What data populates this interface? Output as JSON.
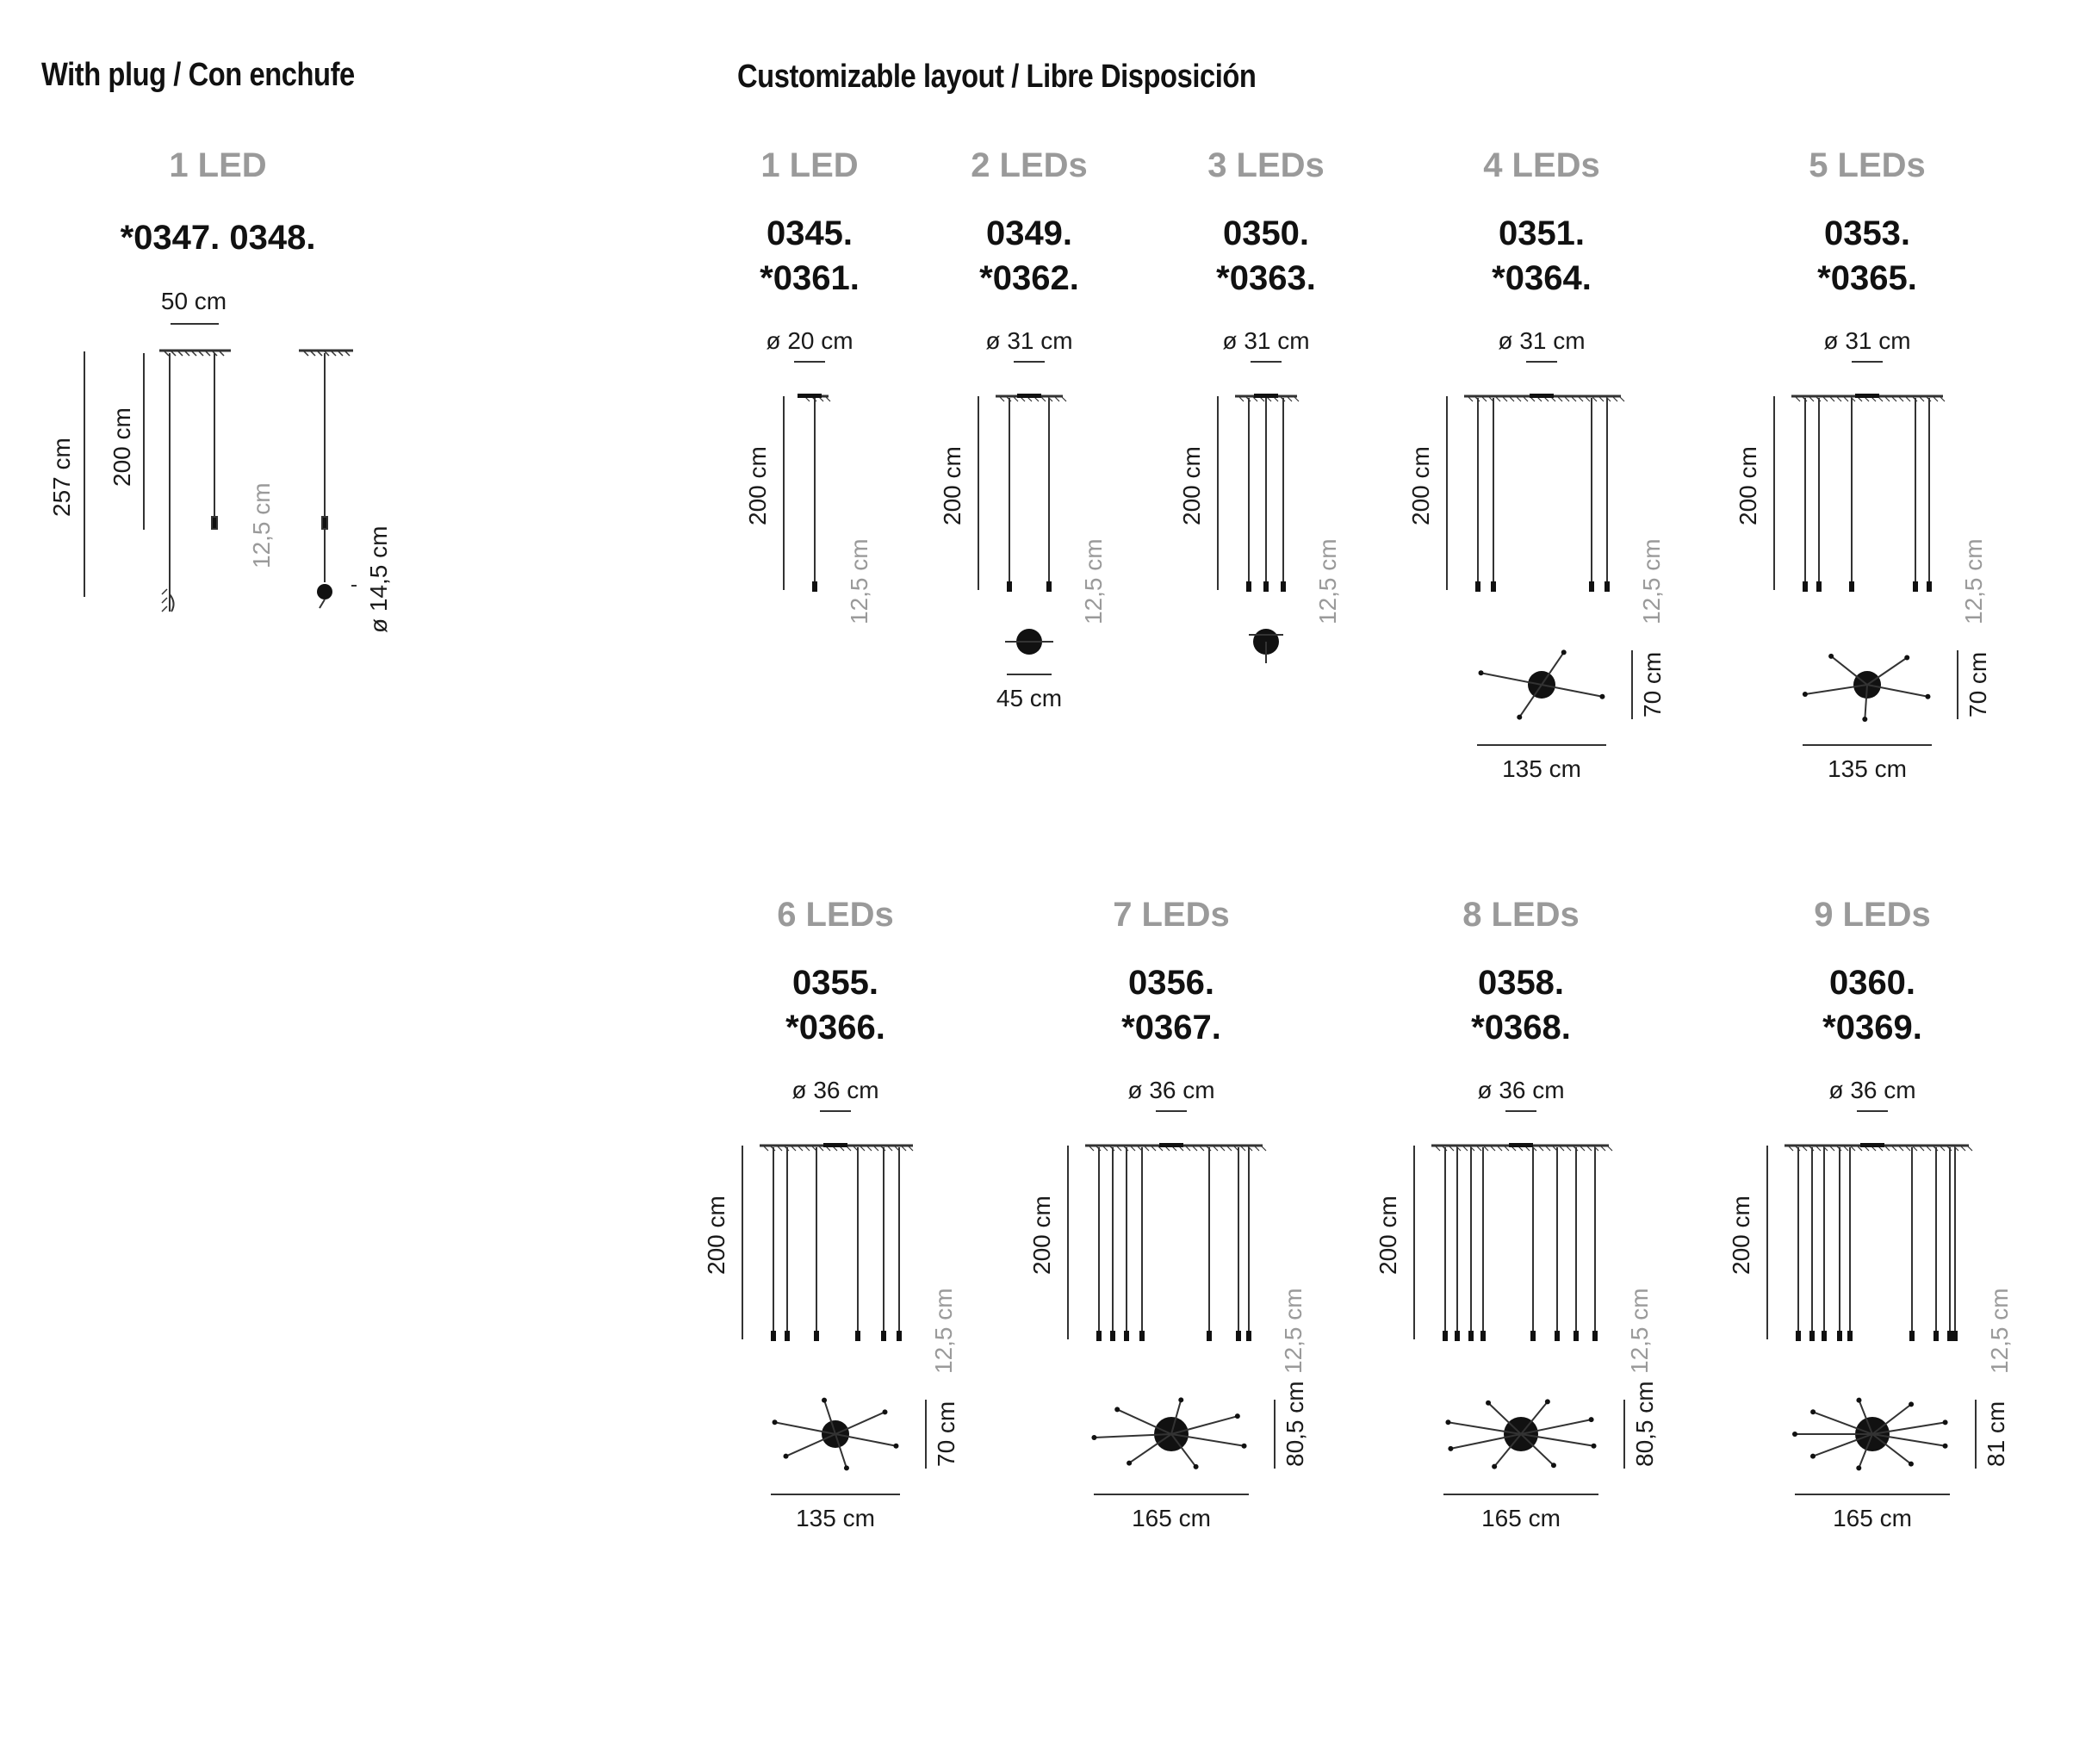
{
  "titles": {
    "plug": "With plug / Con enchufe",
    "custom": "Customizable layout / Libre Disposición"
  },
  "plug_block": {
    "count": "1 LED",
    "codes": "*0347.  0348.",
    "width": "50 cm",
    "total_height": "257 cm",
    "height": "200 cm",
    "drop": "12,5 cm",
    "diameter": "ø 14,5 cm"
  },
  "configs": [
    {
      "count": "1 LED",
      "code1": "0345.",
      "code2": "*0361.",
      "canopy": "ø 20 cm",
      "height": "200 cm",
      "drop": "12,5 cm"
    },
    {
      "count": "2 LEDs",
      "code1": "0349.",
      "code2": "*0362.",
      "canopy": "ø 31 cm",
      "height": "200 cm",
      "drop": "12,5 cm",
      "width": "45 cm"
    },
    {
      "count": "3 LEDs",
      "code1": "0350.",
      "code2": "*0363.",
      "canopy": "ø 31 cm",
      "height": "200 cm",
      "drop": "12,5 cm"
    },
    {
      "count": "4 LEDs",
      "code1": "0351.",
      "code2": "*0364.",
      "canopy": "ø 31 cm",
      "height": "200 cm",
      "drop": "12,5 cm",
      "width": "135 cm",
      "depth": "70 cm"
    },
    {
      "count": "5 LEDs",
      "code1": "0353.",
      "code2": "*0365.",
      "canopy": "ø 31 cm",
      "height": "200 cm",
      "drop": "12,5 cm",
      "width": "135 cm",
      "depth": "70 cm"
    },
    {
      "count": "6 LEDs",
      "code1": "0355.",
      "code2": "*0366.",
      "canopy": "ø 36 cm",
      "height": "200 cm",
      "drop": "12,5 cm",
      "width": "135 cm",
      "depth": "70 cm"
    },
    {
      "count": "7 LEDs",
      "code1": "0356.",
      "code2": "*0367.",
      "canopy": "ø 36 cm",
      "height": "200 cm",
      "drop": "12,5 cm",
      "width": "165 cm",
      "depth": "80,5 cm"
    },
    {
      "count": "8 LEDs",
      "code1": "0358.",
      "code2": "*0368.",
      "canopy": "ø 36 cm",
      "height": "200 cm",
      "drop": "12,5 cm",
      "width": "165 cm",
      "depth": "80,5 cm"
    },
    {
      "count": "9 LEDs",
      "code1": "0360.",
      "code2": "*0369.",
      "canopy": "ø 36 cm",
      "height": "200 cm",
      "drop": "12,5 cm",
      "width": "165 cm",
      "depth": "81 cm"
    }
  ],
  "colors": {
    "text": "#111111",
    "grey": "#9a9a9a",
    "line": "#333333"
  }
}
